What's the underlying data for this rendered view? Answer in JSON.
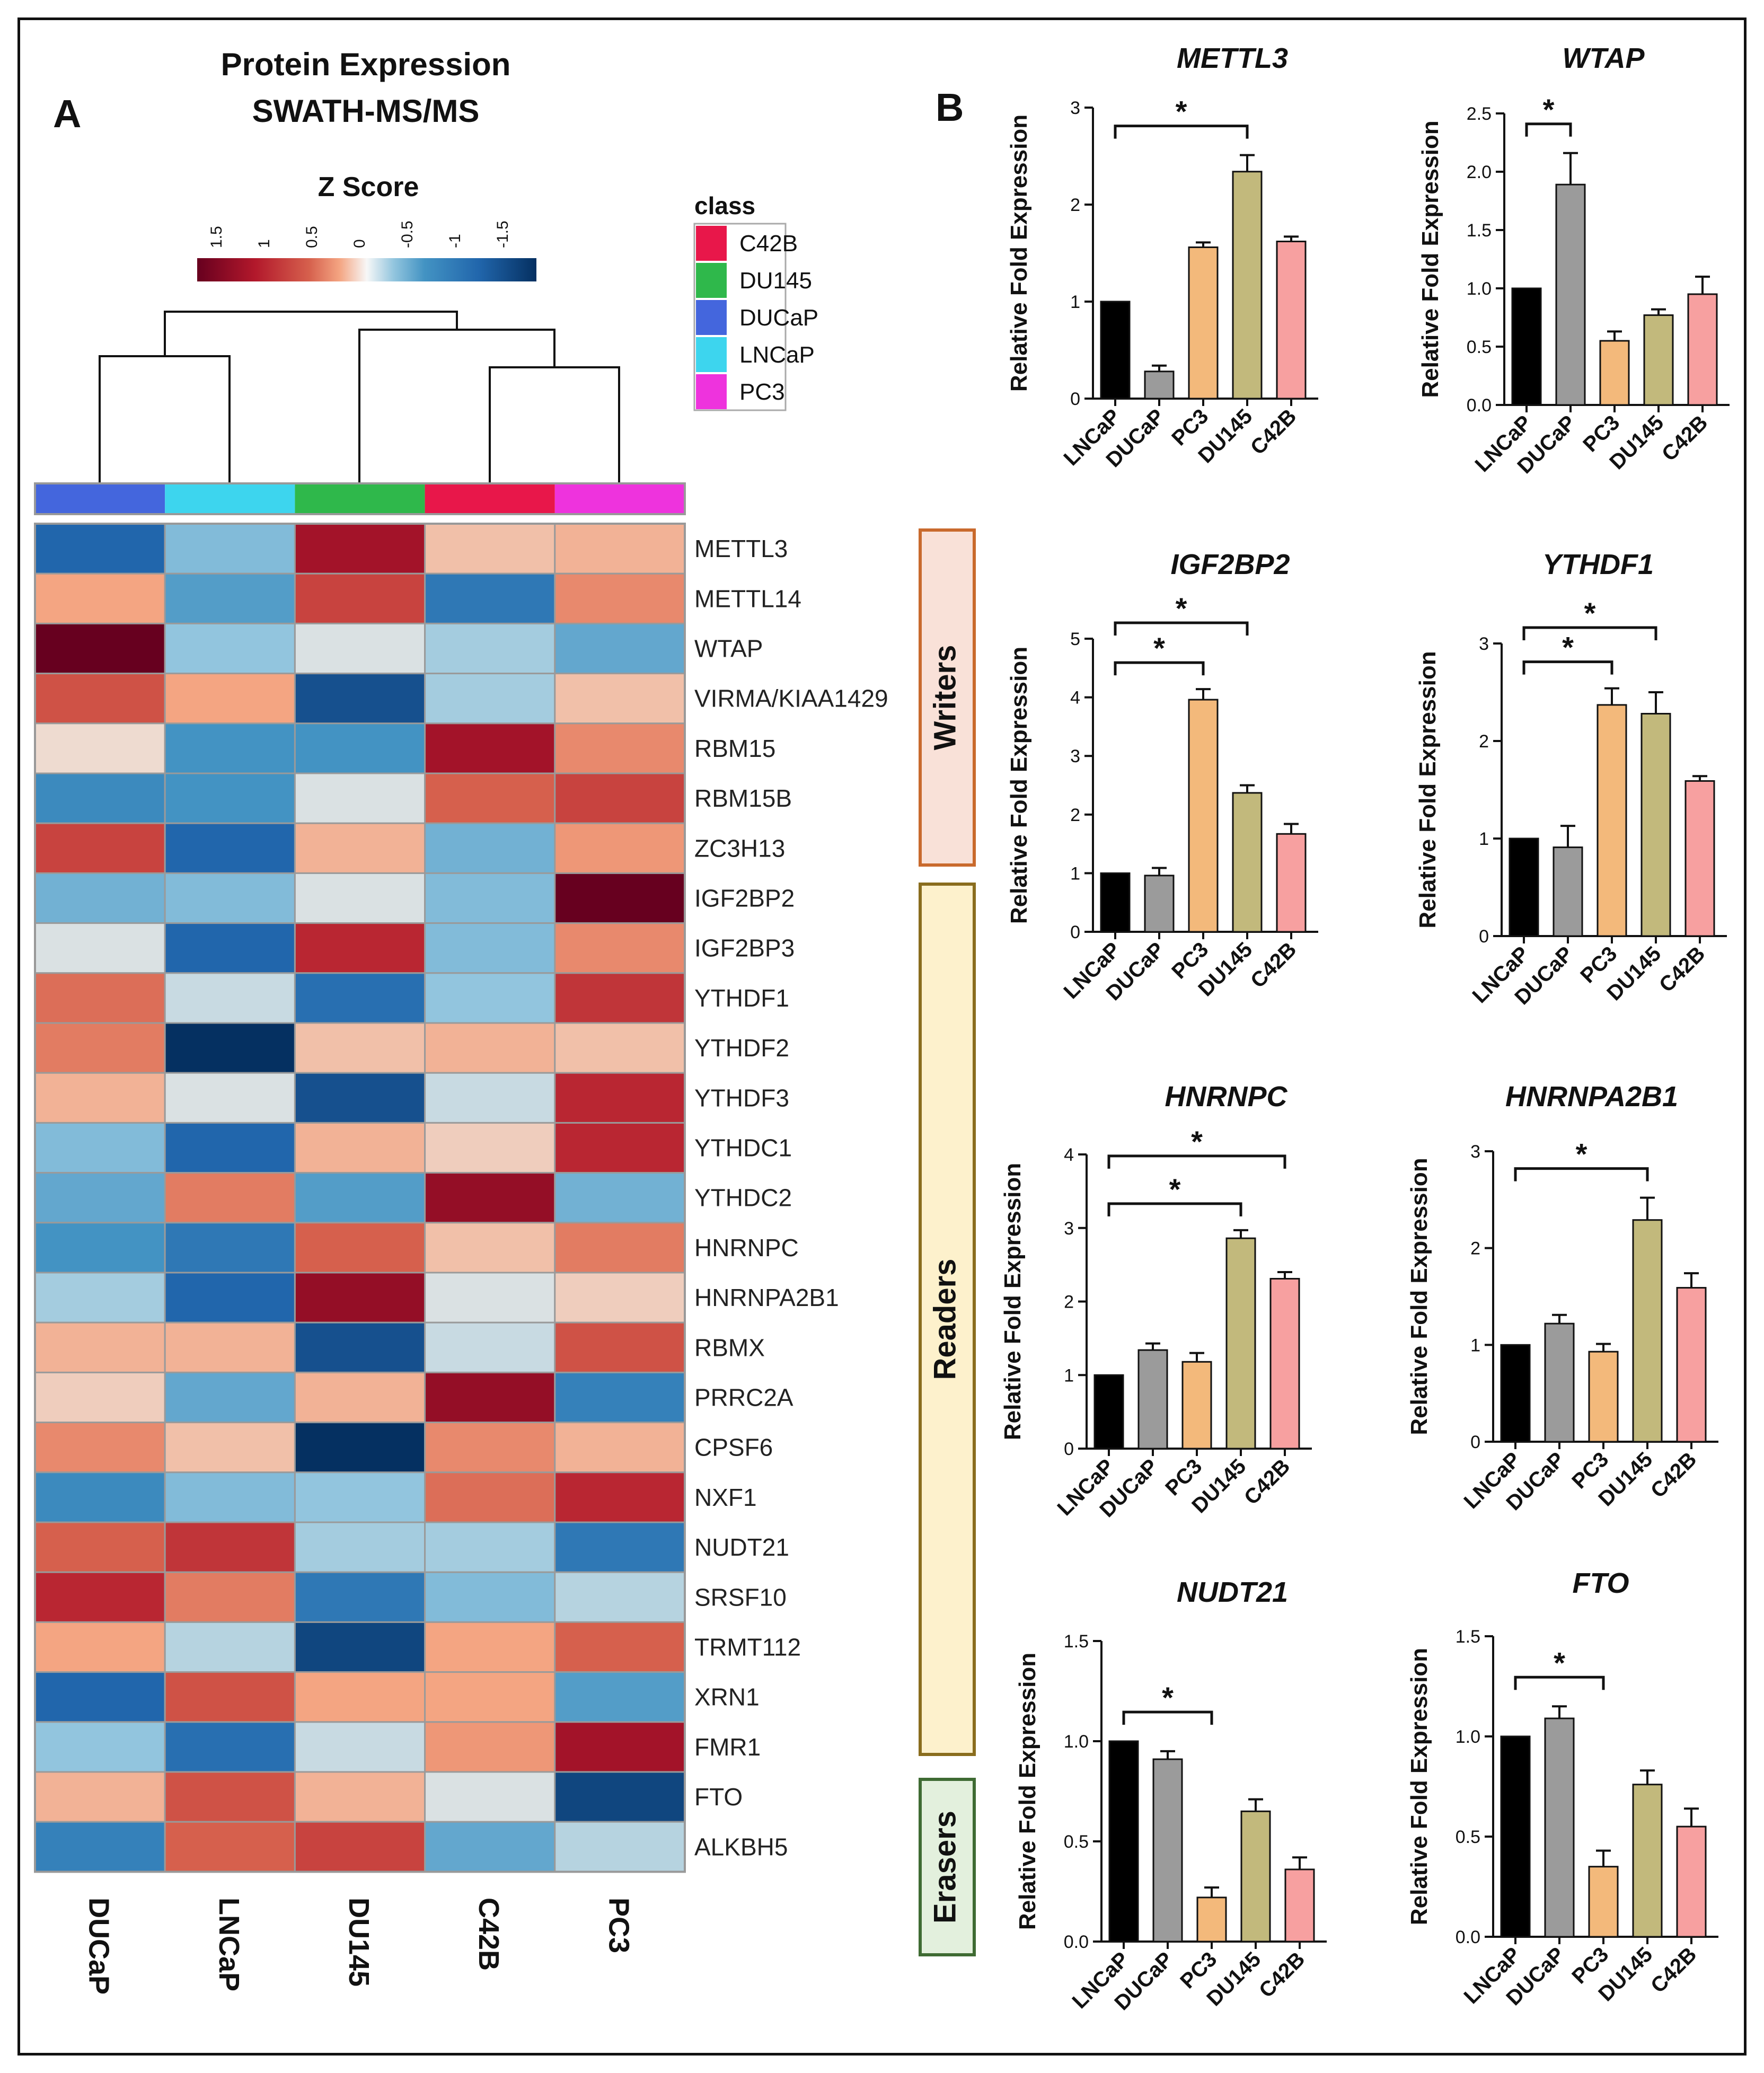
{
  "panel_a": {
    "letter": "A",
    "title_line1": "Protein Expression",
    "title_line2": "SWATH-MS/MS",
    "zscore_label": "Z Score",
    "zscore_ticks": [
      "1.5",
      "1",
      "0.5",
      "0",
      "-0.5",
      "-1",
      "-1.5"
    ],
    "class_title": "class",
    "classes": [
      {
        "name": "C42B",
        "color": "#e8174a"
      },
      {
        "name": "DU145",
        "color": "#2fb84b"
      },
      {
        "name": "DUCaP",
        "color": "#4466dd"
      },
      {
        "name": "LNCaP",
        "color": "#3dd5ee"
      },
      {
        "name": "PC3",
        "color": "#ee33dd"
      }
    ],
    "groups": [
      {
        "label": "Writers",
        "fill": "#f9e1d8",
        "stroke": "#c96a2d"
      },
      {
        "label": "Readers",
        "fill": "#fdf1cc",
        "stroke": "#8a6d1e"
      },
      {
        "label": "Erasers",
        "fill": "#e3f0dd",
        "stroke": "#3f6b33"
      }
    ]
  },
  "panel_b": {
    "letter": "B",
    "ylabel": "Relative Fold Expression",
    "categories": [
      "LNCaP",
      "DUCaP",
      "PC3",
      "DU145",
      "C42B"
    ],
    "bar_colors": [
      "#000000",
      "#9b9b9b",
      "#f3b97b",
      "#c2b97c",
      "#f7a0a0"
    ],
    "significance_mark": "*"
  },
  "chart_data": [
    {
      "type": "heatmap",
      "title": "Protein Expression SWATH-MS/MS",
      "legend_title": "Z Score",
      "value_range": [
        -2,
        2
      ],
      "columns": [
        "DUCaP",
        "LNCaP",
        "DU145",
        "C42B",
        "PC3"
      ],
      "rows": [
        "METTL3",
        "METTL14",
        "WTAP",
        "VIRMA/KIAA1429",
        "RBM15",
        "RBM15B",
        "ZC3H13",
        "IGF2BP2",
        "IGF2BP3",
        "YTHDF1",
        "YTHDF2",
        "YTHDF3",
        "YTHDC1",
        "YTHDC2",
        "HNRNPC",
        "HNRNPA2B1",
        "RBMX",
        "PRRC2A",
        "CPSF6",
        "NXF1",
        "NUDT21",
        "SRSF10",
        "TRMT112",
        "XRN1",
        "FMR1",
        "FTO",
        "ALKBH5"
      ],
      "values": [
        [
          -1.5,
          -0.6,
          1.6,
          0.3,
          0.4
        ],
        [
          0.5,
          -0.9,
          1.2,
          -1.3,
          0.7
        ],
        [
          2.0,
          -0.5,
          -0.1,
          -0.4,
          -0.8
        ],
        [
          1.1,
          0.5,
          -1.7,
          -0.4,
          0.3
        ],
        [
          0.1,
          -1.0,
          -1.0,
          1.6,
          0.7
        ],
        [
          -1.1,
          -1.0,
          -0.1,
          1.0,
          1.2
        ],
        [
          1.2,
          -1.5,
          0.4,
          -0.7,
          0.6
        ],
        [
          -0.7,
          -0.6,
          -0.1,
          -0.6,
          2.0
        ],
        [
          -0.1,
          -1.5,
          1.4,
          -0.6,
          0.7
        ],
        [
          0.9,
          -0.2,
          -1.4,
          -0.5,
          1.3
        ],
        [
          0.8,
          -2.0,
          0.3,
          0.4,
          0.3
        ],
        [
          0.4,
          -0.1,
          -1.7,
          -0.2,
          1.4
        ],
        [
          -0.6,
          -1.5,
          0.4,
          0.2,
          1.4
        ],
        [
          -0.8,
          0.8,
          -0.9,
          1.7,
          -0.7
        ],
        [
          -1.0,
          -1.3,
          1.0,
          0.3,
          0.8
        ],
        [
          -0.4,
          -1.5,
          1.7,
          -0.1,
          0.2
        ],
        [
          0.4,
          0.4,
          -1.7,
          -0.2,
          1.1
        ],
        [
          0.2,
          -0.8,
          0.4,
          1.7,
          -1.2
        ],
        [
          0.7,
          0.3,
          -2.0,
          0.7,
          0.4
        ],
        [
          -1.1,
          -0.6,
          -0.5,
          0.9,
          1.4
        ],
        [
          1.0,
          1.3,
          -0.4,
          -0.4,
          -1.3
        ],
        [
          1.4,
          0.8,
          -1.3,
          -0.6,
          -0.3
        ],
        [
          0.5,
          -0.3,
          -1.8,
          0.5,
          1.0
        ],
        [
          -1.5,
          1.1,
          0.5,
          0.5,
          -0.9
        ],
        [
          -0.5,
          -1.4,
          -0.2,
          0.6,
          1.6
        ],
        [
          0.4,
          1.1,
          0.4,
          -0.1,
          -1.8
        ],
        [
          -1.2,
          1.0,
          1.2,
          -0.8,
          -0.3
        ]
      ]
    },
    {
      "type": "bar",
      "title": "METTL3",
      "categories": [
        "LNCaP",
        "DUCaP",
        "PC3",
        "DU145",
        "C42B"
      ],
      "values": [
        1.0,
        0.28,
        1.56,
        2.34,
        1.62
      ],
      "errors": [
        0,
        0.06,
        0.05,
        0.17,
        0.05
      ],
      "ylim": [
        0,
        3
      ],
      "yticks": [
        "0",
        "1",
        "2",
        "3"
      ],
      "significance": [
        {
          "from": "LNCaP",
          "to": "DU145",
          "mark": "*"
        }
      ]
    },
    {
      "type": "bar",
      "title": "WTAP",
      "categories": [
        "LNCaP",
        "DUCaP",
        "PC3",
        "DU145",
        "C42B"
      ],
      "values": [
        1.0,
        1.89,
        0.55,
        0.77,
        0.95
      ],
      "errors": [
        0,
        0.27,
        0.08,
        0.05,
        0.15
      ],
      "ylim": [
        0,
        2.5
      ],
      "yticks": [
        "0.0",
        "0.5",
        "1.0",
        "1.5",
        "2.0",
        "2.5"
      ],
      "significance": [
        {
          "from": "LNCaP",
          "to": "DUCaP",
          "mark": "*"
        }
      ]
    },
    {
      "type": "bar",
      "title": "IGF2BP2",
      "categories": [
        "LNCaP",
        "DUCaP",
        "PC3",
        "DU145",
        "C42B"
      ],
      "values": [
        1.0,
        0.96,
        3.96,
        2.37,
        1.67
      ],
      "errors": [
        0,
        0.13,
        0.18,
        0.13,
        0.17
      ],
      "ylim": [
        0,
        5
      ],
      "yticks": [
        "0",
        "1",
        "2",
        "3",
        "4",
        "5"
      ],
      "significance": [
        {
          "from": "LNCaP",
          "to": "PC3",
          "mark": "*"
        },
        {
          "from": "LNCaP",
          "to": "DU145",
          "mark": "*"
        }
      ]
    },
    {
      "type": "bar",
      "title": "YTHDF1",
      "categories": [
        "LNCaP",
        "DUCaP",
        "PC3",
        "DU145",
        "C42B"
      ],
      "values": [
        1.0,
        0.91,
        2.37,
        2.28,
        1.59
      ],
      "errors": [
        0,
        0.22,
        0.17,
        0.22,
        0.05
      ],
      "ylim": [
        0,
        3
      ],
      "yticks": [
        "0",
        "1",
        "2",
        "3"
      ],
      "significance": [
        {
          "from": "LNCaP",
          "to": "PC3",
          "mark": "*"
        },
        {
          "from": "LNCaP",
          "to": "DU145",
          "mark": "*"
        }
      ]
    },
    {
      "type": "bar",
      "title": "HNRNPC",
      "categories": [
        "LNCaP",
        "DUCaP",
        "PC3",
        "DU145",
        "C42B"
      ],
      "values": [
        1.0,
        1.34,
        1.18,
        2.86,
        2.31
      ],
      "errors": [
        0,
        0.09,
        0.12,
        0.11,
        0.09
      ],
      "ylim": [
        0,
        4
      ],
      "yticks": [
        "0",
        "1",
        "2",
        "3",
        "4"
      ],
      "significance": [
        {
          "from": "LNCaP",
          "to": "DU145",
          "mark": "*"
        },
        {
          "from": "LNCaP",
          "to": "C42B",
          "mark": "*"
        }
      ]
    },
    {
      "type": "bar",
      "title": "HNRNPA2B1",
      "categories": [
        "LNCaP",
        "DUCaP",
        "PC3",
        "DU145",
        "C42B"
      ],
      "values": [
        1.0,
        1.22,
        0.93,
        2.29,
        1.59
      ],
      "errors": [
        0,
        0.09,
        0.08,
        0.23,
        0.15
      ],
      "ylim": [
        0,
        3
      ],
      "yticks": [
        "0",
        "1",
        "2",
        "3"
      ],
      "significance": [
        {
          "from": "LNCaP",
          "to": "DU145",
          "mark": "*"
        }
      ]
    },
    {
      "type": "bar",
      "title": "NUDT21",
      "categories": [
        "LNCaP",
        "DUCaP",
        "PC3",
        "DU145",
        "C42B"
      ],
      "values": [
        1.0,
        0.91,
        0.22,
        0.65,
        0.36
      ],
      "errors": [
        0,
        0.04,
        0.05,
        0.06,
        0.06
      ],
      "ylim": [
        0,
        1.5
      ],
      "yticks": [
        "0.0",
        "0.5",
        "1.0",
        "1.5"
      ],
      "significance": [
        {
          "from": "LNCaP",
          "to": "PC3",
          "mark": "*"
        }
      ]
    },
    {
      "type": "bar",
      "title": "FTO",
      "categories": [
        "LNCaP",
        "DUCaP",
        "PC3",
        "DU145",
        "C42B"
      ],
      "values": [
        1.0,
        1.09,
        0.35,
        0.76,
        0.55
      ],
      "errors": [
        0,
        0.06,
        0.08,
        0.07,
        0.09
      ],
      "ylim": [
        0,
        1.5
      ],
      "yticks": [
        "0.0",
        "0.5",
        "1.0",
        "1.5"
      ],
      "significance": [
        {
          "from": "LNCaP",
          "to": "PC3",
          "mark": "*"
        }
      ]
    }
  ]
}
